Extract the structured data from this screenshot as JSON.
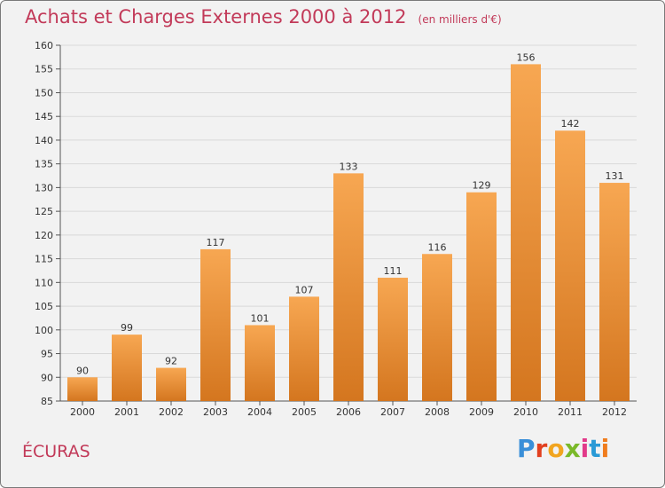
{
  "header": {
    "title": "Achats et Charges Externes 2000 à 2012",
    "subtitle": "(en milliers d'€)"
  },
  "footer": {
    "place_name": "ÉCURAS",
    "brand": "Proxiti",
    "brand_colors": [
      "#3a8fd8",
      "#e2401f",
      "#f2a51f",
      "#7ab929",
      "#e23a8a",
      "#2a9ad6",
      "#f07d1e"
    ]
  },
  "colors": {
    "bar_light": "#f7a752",
    "bar_dark": "#d4761f",
    "title": "#c23a59",
    "grid": "#d9d9d9",
    "axis": "#555555"
  },
  "chart_data": {
    "type": "bar",
    "title": "Achats et Charges Externes 2000 à 2012",
    "subtitle": "(en milliers d'€)",
    "xlabel": "",
    "ylabel": "",
    "categories": [
      "2000",
      "2001",
      "2002",
      "2003",
      "2004",
      "2005",
      "2006",
      "2007",
      "2008",
      "2009",
      "2010",
      "2011",
      "2012"
    ],
    "values": [
      90,
      99,
      92,
      117,
      101,
      107,
      133,
      111,
      116,
      129,
      156,
      142,
      131
    ],
    "ylim": [
      85,
      160
    ],
    "yticks": [
      85,
      90,
      95,
      100,
      105,
      110,
      115,
      120,
      125,
      130,
      135,
      140,
      145,
      150,
      155,
      160
    ],
    "grid": true,
    "data_labels": true,
    "legend": "none"
  }
}
